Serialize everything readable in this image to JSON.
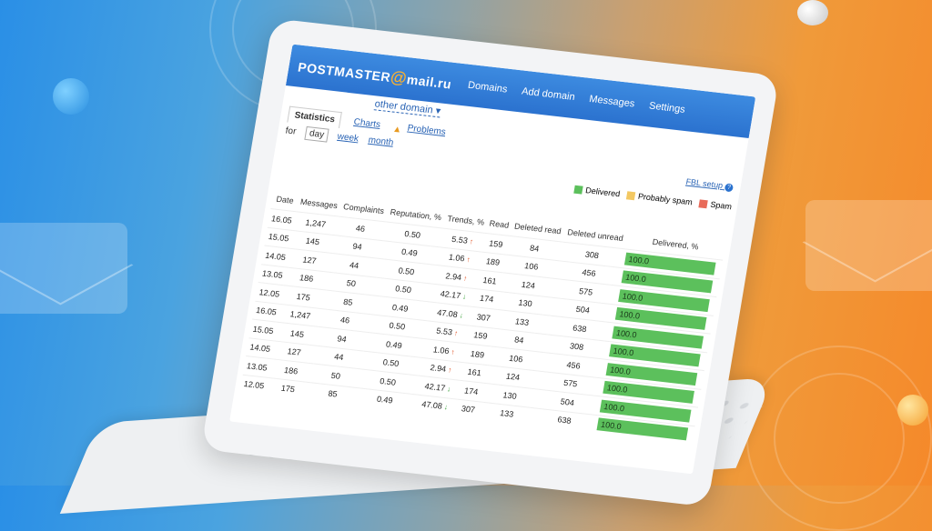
{
  "header": {
    "logo_text": "POSTMASTER",
    "logo_at": "@",
    "logo_domain": "mail.ru",
    "nav": [
      "Domains",
      "Add domain",
      "Messages",
      "Settings"
    ]
  },
  "toolbar": {
    "domain_select": "other domain",
    "tabs": {
      "statistics": "Statistics",
      "charts": "Charts",
      "problems": "Problems"
    },
    "for_label": "for",
    "periods": {
      "day": "day",
      "week": "week",
      "month": "month"
    },
    "fbl_setup": "FBL setup"
  },
  "legend": {
    "delivered": "Delivered",
    "probably_spam": "Probably spam",
    "spam": "Spam"
  },
  "colors": {
    "header": "#2b72cf",
    "delivered": "#5cc05c",
    "probably_spam": "#f3c862",
    "spam": "#e86b5a",
    "trend_up": "#e04b1a",
    "trend_down": "#3aa23a"
  },
  "table": {
    "columns": [
      "Date",
      "Messages",
      "Complaints",
      "Reputation, %",
      "Trends, %",
      "Read",
      "Deleted read",
      "Deleted unread",
      "Delivered, %"
    ],
    "rows": [
      {
        "date": "16.05",
        "messages": "1,247",
        "complaints": "46",
        "reputation": "0.50",
        "trend": "5.53",
        "trend_dir": "up",
        "read": "159",
        "deleted_read": "84",
        "deleted_unread": "308",
        "delivered": "100.0"
      },
      {
        "date": "15.05",
        "messages": "145",
        "complaints": "94",
        "reputation": "0.49",
        "trend": "1.06",
        "trend_dir": "up",
        "read": "189",
        "deleted_read": "106",
        "deleted_unread": "456",
        "delivered": "100.0"
      },
      {
        "date": "14.05",
        "messages": "127",
        "complaints": "44",
        "reputation": "0.50",
        "trend": "2.94",
        "trend_dir": "up",
        "read": "161",
        "deleted_read": "124",
        "deleted_unread": "575",
        "delivered": "100.0"
      },
      {
        "date": "13.05",
        "messages": "186",
        "complaints": "50",
        "reputation": "0.50",
        "trend": "42.17",
        "trend_dir": "down",
        "read": "174",
        "deleted_read": "130",
        "deleted_unread": "504",
        "delivered": "100.0"
      },
      {
        "date": "12.05",
        "messages": "175",
        "complaints": "85",
        "reputation": "0.49",
        "trend": "47.08",
        "trend_dir": "down",
        "read": "307",
        "deleted_read": "133",
        "deleted_unread": "638",
        "delivered": "100.0"
      },
      {
        "date": "16.05",
        "messages": "1,247",
        "complaints": "46",
        "reputation": "0.50",
        "trend": "5.53",
        "trend_dir": "up",
        "read": "159",
        "deleted_read": "84",
        "deleted_unread": "308",
        "delivered": "100.0"
      },
      {
        "date": "15.05",
        "messages": "145",
        "complaints": "94",
        "reputation": "0.49",
        "trend": "1.06",
        "trend_dir": "up",
        "read": "189",
        "deleted_read": "106",
        "deleted_unread": "456",
        "delivered": "100.0"
      },
      {
        "date": "14.05",
        "messages": "127",
        "complaints": "44",
        "reputation": "0.50",
        "trend": "2.94",
        "trend_dir": "up",
        "read": "161",
        "deleted_read": "124",
        "deleted_unread": "575",
        "delivered": "100.0"
      },
      {
        "date": "13.05",
        "messages": "186",
        "complaints": "50",
        "reputation": "0.50",
        "trend": "42.17",
        "trend_dir": "down",
        "read": "174",
        "deleted_read": "130",
        "deleted_unread": "504",
        "delivered": "100.0"
      },
      {
        "date": "12.05",
        "messages": "175",
        "complaints": "85",
        "reputation": "0.49",
        "trend": "47.08",
        "trend_dir": "down",
        "read": "307",
        "deleted_read": "133",
        "deleted_unread": "638",
        "delivered": "100.0"
      }
    ]
  },
  "icons": {
    "trend_up": "arrow-up-icon",
    "trend_down": "arrow-down-icon",
    "warning": "warning-icon",
    "help": "help-icon",
    "caret": "caret-down-icon"
  }
}
